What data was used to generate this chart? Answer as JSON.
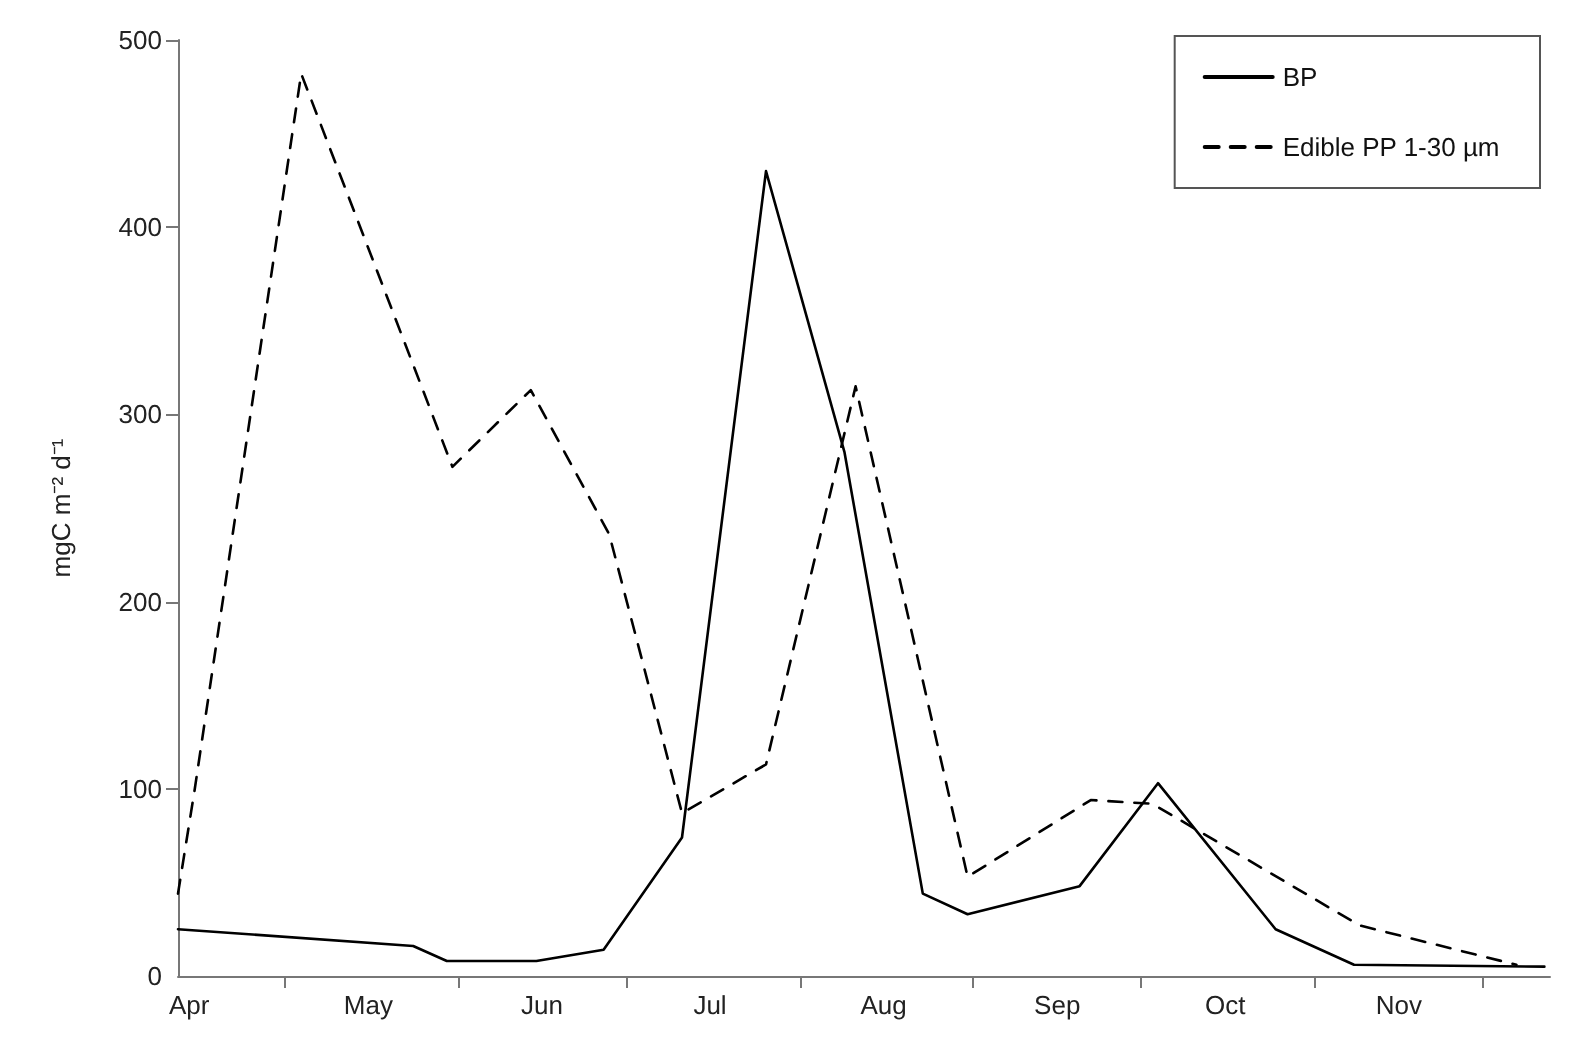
{
  "chart_data": {
    "type": "line",
    "ylabel": "mgC m⁻² d⁻¹",
    "xlim": [
      "--04-12",
      "--12-13"
    ],
    "xticks": [
      {
        "value": "--04-14",
        "label": "Apr"
      },
      {
        "value": "--05-01",
        "label": null
      },
      {
        "value": "--05-16",
        "label": "May"
      },
      {
        "value": "--06-01",
        "label": null
      },
      {
        "value": "--06-16",
        "label": "Jun"
      },
      {
        "value": "--07-01",
        "label": null
      },
      {
        "value": "--07-16",
        "label": "Jul"
      },
      {
        "value": "--08-01",
        "label": null
      },
      {
        "value": "--08-16",
        "label": "Aug"
      },
      {
        "value": "--09-01",
        "label": null
      },
      {
        "value": "--09-16",
        "label": "Sep"
      },
      {
        "value": "--10-01",
        "label": null
      },
      {
        "value": "--10-16",
        "label": "Oct"
      },
      {
        "value": "--11-01",
        "label": null
      },
      {
        "value": "--11-16",
        "label": "Nov"
      },
      {
        "value": "--12-01",
        "label": null
      }
    ],
    "ylim": [
      0,
      500
    ],
    "yticks": [
      0,
      100,
      200,
      300,
      400,
      500
    ],
    "grid": false,
    "legend": "top right",
    "marker": "none",
    "series": [
      {
        "name": "BP",
        "color": "#000000",
        "line_style": "solid",
        "x": [
          "--04-12",
          "--05-24",
          "--05-30",
          "--06-15",
          "--06-27",
          "--07-11",
          "--07-26",
          "--08-09",
          "--08-23",
          "--08-31",
          "--09-20",
          "--10-04",
          "--10-25",
          "--11-08",
          "--12-12"
        ],
        "values": [
          25,
          16,
          8,
          8,
          14,
          74,
          430,
          280,
          44,
          33,
          48,
          103,
          25,
          6,
          5
        ]
      },
      {
        "name": "Edible PP 1-30 µm",
        "color": "#000000",
        "line_style": "dashed",
        "x": [
          "--04-12",
          "--04-15",
          "--05-04",
          "--05-31",
          "--06-14",
          "--06-28",
          "--07-11",
          "--07-26",
          "--08-11",
          "--08-31",
          "--09-22",
          "--10-03",
          "--11-09",
          "--12-07"
        ],
        "values": [
          44,
          100,
          482,
          272,
          313,
          236,
          87,
          113,
          315,
          53,
          94,
          92,
          27,
          6
        ]
      }
    ]
  }
}
